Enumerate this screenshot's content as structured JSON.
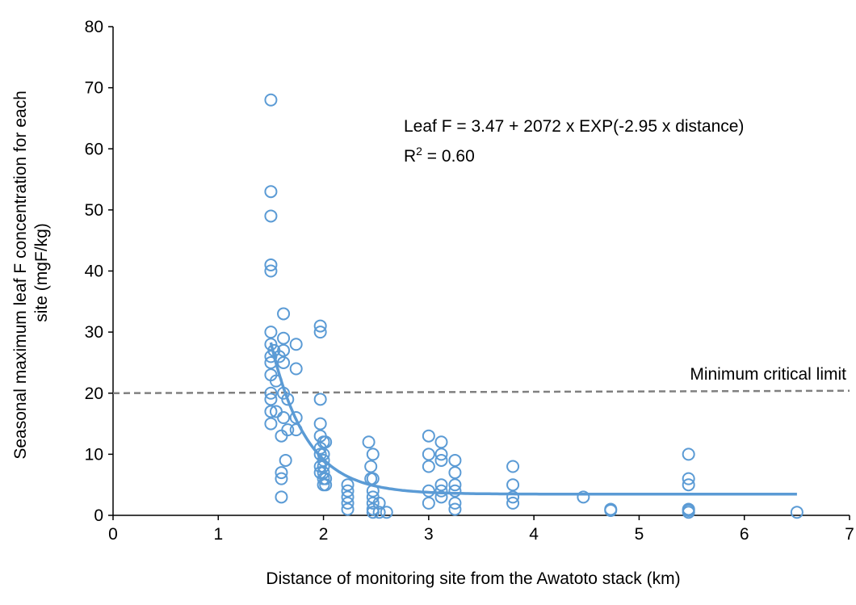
{
  "chart_data": {
    "type": "scatter",
    "title": "",
    "xlabel": "Distance of monitoring site from the Awatoto stack (km)",
    "ylabel_lines": [
      "Seasonal maximum leaf F concentration for each",
      "site (mgF/kg)"
    ],
    "xlim": [
      0,
      7
    ],
    "ylim": [
      0,
      80
    ],
    "x_ticks": [
      0,
      1,
      2,
      3,
      4,
      5,
      6,
      7
    ],
    "y_ticks": [
      0,
      10,
      20,
      30,
      40,
      50,
      60,
      70,
      80
    ],
    "grid": false,
    "colors": {
      "points": "#5b9bd5",
      "fit": "#5b9bd5",
      "limit": "#808080",
      "axis": "#000000"
    },
    "series": [
      {
        "marker": "open-circle",
        "points": [
          [
            1.5,
            68
          ],
          [
            1.5,
            53
          ],
          [
            1.5,
            49
          ],
          [
            1.5,
            41
          ],
          [
            1.5,
            40
          ],
          [
            1.5,
            30
          ],
          [
            1.5,
            28
          ],
          [
            1.5,
            26
          ],
          [
            1.5,
            25
          ],
          [
            1.5,
            23
          ],
          [
            1.5,
            20
          ],
          [
            1.5,
            19
          ],
          [
            1.5,
            17
          ],
          [
            1.5,
            15
          ],
          [
            1.53,
            27
          ],
          [
            1.55,
            22
          ],
          [
            1.55,
            17
          ],
          [
            1.58,
            26
          ],
          [
            1.62,
            33
          ],
          [
            1.62,
            29
          ],
          [
            1.62,
            27
          ],
          [
            1.62,
            25
          ],
          [
            1.62,
            20
          ],
          [
            1.62,
            16
          ],
          [
            1.6,
            13
          ],
          [
            1.6,
            7
          ],
          [
            1.6,
            6
          ],
          [
            1.6,
            3
          ],
          [
            1.64,
            9
          ],
          [
            1.66,
            19
          ],
          [
            1.66,
            14
          ],
          [
            1.74,
            28
          ],
          [
            1.74,
            24
          ],
          [
            1.74,
            16
          ],
          [
            1.74,
            14
          ],
          [
            1.97,
            31
          ],
          [
            1.97,
            30
          ],
          [
            1.97,
            19
          ],
          [
            1.97,
            15
          ],
          [
            1.97,
            13
          ],
          [
            1.97,
            11
          ],
          [
            1.97,
            10
          ],
          [
            1.97,
            8
          ],
          [
            1.97,
            7
          ],
          [
            2.0,
            12
          ],
          [
            2.0,
            10
          ],
          [
            2.0,
            9
          ],
          [
            2.0,
            8
          ],
          [
            2.0,
            7
          ],
          [
            2.0,
            6
          ],
          [
            2.0,
            5
          ],
          [
            2.02,
            12
          ],
          [
            2.02,
            6
          ],
          [
            2.02,
            5
          ],
          [
            2.23,
            5
          ],
          [
            2.23,
            4
          ],
          [
            2.23,
            3
          ],
          [
            2.23,
            2
          ],
          [
            2.23,
            1
          ],
          [
            2.43,
            12
          ],
          [
            2.45,
            8
          ],
          [
            2.45,
            6
          ],
          [
            2.47,
            10
          ],
          [
            2.47,
            6
          ],
          [
            2.47,
            4
          ],
          [
            2.47,
            3
          ],
          [
            2.47,
            2
          ],
          [
            2.47,
            1
          ],
          [
            2.47,
            0.5
          ],
          [
            2.53,
            2
          ],
          [
            2.53,
            0.5
          ],
          [
            2.6,
            0.5
          ],
          [
            3.0,
            13
          ],
          [
            3.0,
            10
          ],
          [
            3.0,
            8
          ],
          [
            3.0,
            4
          ],
          [
            3.0,
            2
          ],
          [
            3.12,
            12
          ],
          [
            3.12,
            10
          ],
          [
            3.12,
            9
          ],
          [
            3.12,
            5
          ],
          [
            3.12,
            4
          ],
          [
            3.12,
            3
          ],
          [
            3.25,
            9
          ],
          [
            3.25,
            7
          ],
          [
            3.25,
            5
          ],
          [
            3.25,
            4
          ],
          [
            3.25,
            2
          ],
          [
            3.25,
            1
          ],
          [
            3.8,
            8
          ],
          [
            3.8,
            5
          ],
          [
            3.8,
            3
          ],
          [
            3.8,
            2
          ],
          [
            4.47,
            3
          ],
          [
            4.73,
            1
          ],
          [
            4.73,
            0.8
          ],
          [
            5.47,
            10
          ],
          [
            5.47,
            6
          ],
          [
            5.47,
            5
          ],
          [
            5.47,
            1
          ],
          [
            5.47,
            0.8
          ],
          [
            5.47,
            0.5
          ],
          [
            6.5,
            0.5
          ]
        ]
      }
    ],
    "fit_curve": {
      "equation": "Leaf F = 3.47 + 2072 x EXP(-2.95 x distance)",
      "r2_label": "R",
      "r2_sup": "2",
      "r2_value": " = 0.60",
      "a": 3.47,
      "b": 2072,
      "k": -2.95,
      "x_range": [
        1.5,
        6.5
      ]
    },
    "reference_line": {
      "label": "Minimum critical limit",
      "y": 20
    }
  }
}
